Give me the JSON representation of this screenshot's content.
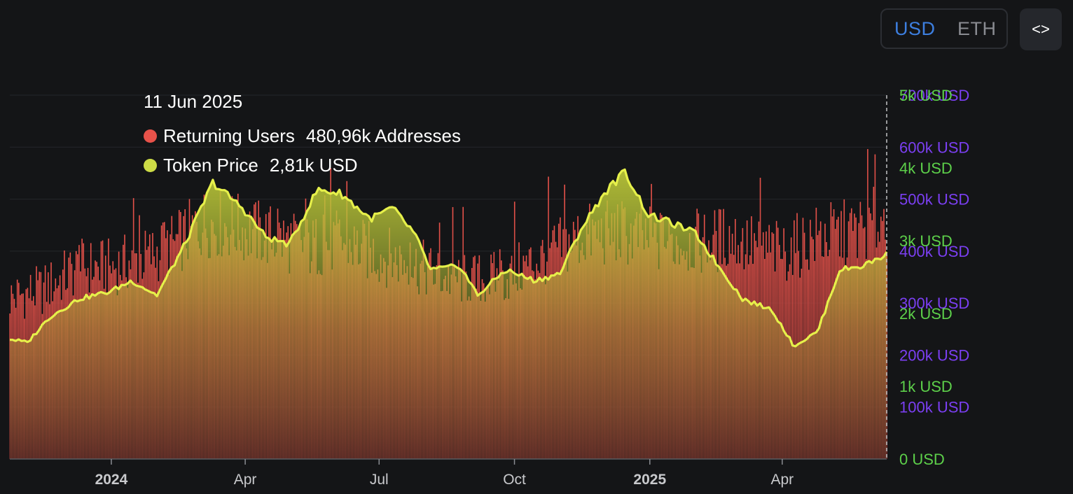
{
  "toggle": {
    "usd_label": "USD",
    "eth_label": "ETH",
    "selected": "USD"
  },
  "embed_icon": "code-brackets-icon",
  "embed_glyph": "<>",
  "tooltip": {
    "date": "11 Jun 2025",
    "rows": [
      {
        "label": "Returning Users",
        "value": "480,96k Addresses",
        "color": "#e8524a"
      },
      {
        "label": "Token Price",
        "value": "2,81k USD",
        "color": "#cddc46"
      }
    ]
  },
  "colors": {
    "bars_top": "#e8524a",
    "bars_bottom": "#6e2a2a",
    "price_line": "#e6f04a",
    "price_fill_top": "#b8c438",
    "axis_users": "#7b3ff2",
    "axis_price": "#5dd04a",
    "x_labels": "#c8c9cc"
  },
  "chart_data": {
    "type": "bar+line",
    "x_ticks": [
      {
        "label": "2024",
        "bold": true,
        "date": "2024-01-01"
      },
      {
        "label": "Apr",
        "bold": false,
        "date": "2024-04-01"
      },
      {
        "label": "Jul",
        "bold": false,
        "date": "2024-07-01"
      },
      {
        "label": "Oct",
        "bold": false,
        "date": "2024-10-01"
      },
      {
        "label": "2025",
        "bold": true,
        "date": "2025-01-01"
      },
      {
        "label": "Apr",
        "bold": false,
        "date": "2025-04-01"
      }
    ],
    "x_range": [
      "2023-10-24",
      "2025-06-11"
    ],
    "y_users": {
      "ticks": [
        "100k USD",
        "200k USD",
        "300k USD",
        "400k USD",
        "500k USD",
        "600k USD",
        "700k USD"
      ],
      "values": [
        100000,
        200000,
        300000,
        400000,
        500000,
        600000,
        700000
      ],
      "range": [
        0,
        700000
      ]
    },
    "y_price": {
      "ticks": [
        "0 USD",
        "1k USD",
        "2k USD",
        "3k USD",
        "4k USD",
        "5k USD"
      ],
      "values": [
        0,
        1000,
        2000,
        3000,
        4000,
        5000
      ],
      "range": [
        0,
        5000
      ]
    },
    "series": [
      {
        "name": "Returning Users",
        "axis": "users",
        "points": [
          [
            "2023-10-24",
            320000
          ],
          [
            "2023-11-15",
            335000
          ],
          [
            "2023-12-10",
            380000
          ],
          [
            "2024-01-01",
            380000
          ],
          [
            "2024-01-25",
            400000
          ],
          [
            "2024-02-15",
            430000
          ],
          [
            "2024-03-05",
            470000
          ],
          [
            "2024-03-25",
            460000
          ],
          [
            "2024-04-20",
            440000
          ],
          [
            "2024-05-15",
            420000
          ],
          [
            "2024-06-05",
            430000
          ],
          [
            "2024-06-25",
            410000
          ],
          [
            "2024-07-20",
            390000
          ],
          [
            "2024-08-15",
            360000
          ],
          [
            "2024-09-05",
            355000
          ],
          [
            "2024-09-25",
            360000
          ],
          [
            "2024-10-20",
            400000
          ],
          [
            "2024-11-15",
            440000
          ],
          [
            "2024-12-10",
            450000
          ],
          [
            "2025-01-10",
            430000
          ],
          [
            "2025-02-05",
            430000
          ],
          [
            "2025-02-25",
            440000
          ],
          [
            "2025-03-15",
            420000
          ],
          [
            "2025-04-01",
            410000
          ],
          [
            "2025-04-25",
            440000
          ],
          [
            "2025-05-20",
            450000
          ],
          [
            "2025-06-11",
            480960
          ]
        ]
      },
      {
        "name": "Token Price",
        "axis": "price",
        "points": [
          [
            "2023-10-24",
            1650
          ],
          [
            "2023-11-05",
            1600
          ],
          [
            "2023-11-20",
            1950
          ],
          [
            "2023-12-10",
            2200
          ],
          [
            "2023-12-31",
            2300
          ],
          [
            "2024-01-15",
            2450
          ],
          [
            "2024-02-01",
            2250
          ],
          [
            "2024-02-20",
            2950
          ],
          [
            "2024-03-10",
            3800
          ],
          [
            "2024-03-30",
            3450
          ],
          [
            "2024-04-15",
            3050
          ],
          [
            "2024-05-01",
            2950
          ],
          [
            "2024-05-20",
            3700
          ],
          [
            "2024-06-05",
            3650
          ],
          [
            "2024-06-25",
            3300
          ],
          [
            "2024-07-10",
            3450
          ],
          [
            "2024-07-25",
            3100
          ],
          [
            "2024-08-05",
            2600
          ],
          [
            "2024-08-25",
            2650
          ],
          [
            "2024-09-06",
            2250
          ],
          [
            "2024-09-25",
            2600
          ],
          [
            "2024-10-15",
            2450
          ],
          [
            "2024-11-01",
            2550
          ],
          [
            "2024-11-15",
            3150
          ],
          [
            "2024-12-01",
            3650
          ],
          [
            "2024-12-15",
            3950
          ],
          [
            "2024-12-31",
            3350
          ],
          [
            "2025-01-15",
            3250
          ],
          [
            "2025-02-01",
            3100
          ],
          [
            "2025-02-15",
            2700
          ],
          [
            "2025-03-05",
            2200
          ],
          [
            "2025-03-25",
            2050
          ],
          [
            "2025-04-09",
            1550
          ],
          [
            "2025-04-25",
            1750
          ],
          [
            "2025-05-10",
            2600
          ],
          [
            "2025-05-25",
            2650
          ],
          [
            "2025-06-11",
            2810
          ]
        ]
      }
    ],
    "crosshair_date": "2025-06-11",
    "grid": true,
    "legend": "tooltip"
  }
}
